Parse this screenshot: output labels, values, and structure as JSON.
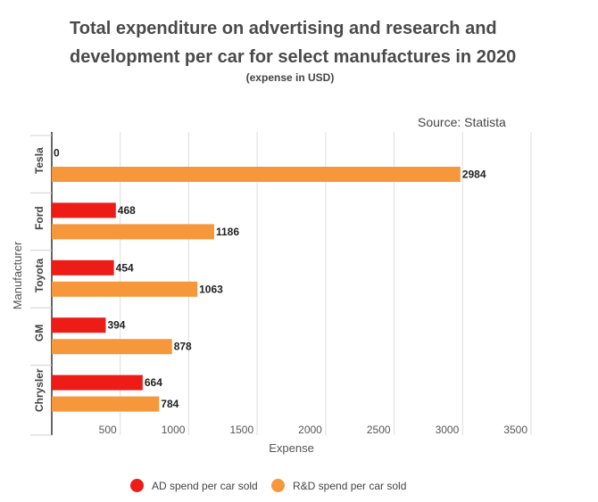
{
  "chart_data": {
    "type": "bar",
    "orientation": "horizontal",
    "title": "Total expenditure on advertising and research and development per car for select manufactures in 2020",
    "subtitle": "(expense in USD)",
    "source": "Source: Statista",
    "xlabel": "Expense",
    "ylabel": "Manufacturer",
    "xlim": [
      0,
      3500
    ],
    "xticks": [
      500,
      1000,
      1500,
      2000,
      2500,
      3000,
      3500
    ],
    "categories": [
      "Tesla",
      "Ford",
      "Toyota",
      "GM",
      "Chrysler"
    ],
    "series": [
      {
        "name": "AD spend per car sold",
        "color": "#ed1c16",
        "values": [
          0,
          468,
          454,
          394,
          664
        ]
      },
      {
        "name": "R&D spend per car sold",
        "color": "#f5973a",
        "values": [
          2984,
          1186,
          1063,
          878,
          784
        ]
      }
    ],
    "legend_position": "bottom"
  }
}
